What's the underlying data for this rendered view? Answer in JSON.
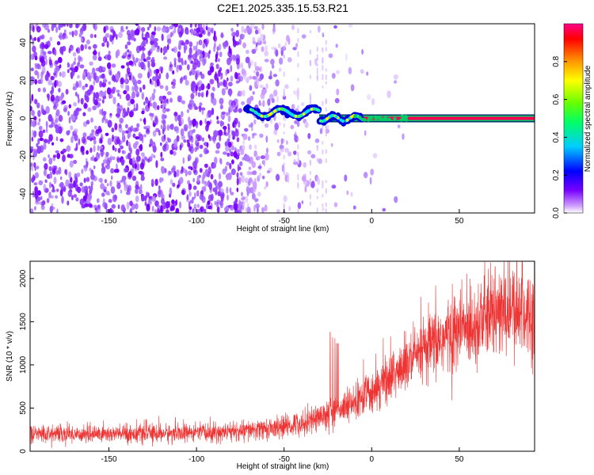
{
  "page_title": "C2E1.2025.335.15.53.R21",
  "chart_data": [
    {
      "type": "heatmap",
      "title": "C2E1.2025.335.15.53.R21",
      "xlabel": "Height of straight line (km)",
      "ylabel": "Frequency (Hz)",
      "xlim": [
        -195,
        93
      ],
      "ylim": [
        -50,
        50
      ],
      "xticks": [
        -150,
        -100,
        -50,
        0,
        50
      ],
      "yticks": [
        -40,
        -20,
        0,
        20,
        40
      ],
      "colorbar": {
        "label": "Normalized spectral amplitude",
        "range": [
          0,
          1
        ],
        "ticks": [
          "0.0",
          "0.2",
          "0.4",
          "0.6",
          "0.8"
        ],
        "colors": [
          "#ffffff",
          "#cc99ff",
          "#7700ff",
          "#0000ff",
          "#00ccff",
          "#00ff66",
          "#66ff00",
          "#ffff00",
          "#ff9900",
          "#ff0000",
          "#ff0088"
        ]
      },
      "features": {
        "noise_region_x": [
          -195,
          -25
        ],
        "sparse_noise_x": [
          -50,
          20
        ],
        "signal_line_x": [
          -72,
          93
        ],
        "signal_frequency_hz": 0,
        "signal_amplitude_on_line": 0.95
      },
      "grid": false
    },
    {
      "type": "line",
      "xlabel": "Height of straight line (km)",
      "ylabel": "SNR (10 * v/v)",
      "xlim": [
        -195,
        93
      ],
      "ylim": [
        0,
        2200
      ],
      "xticks": [
        -150,
        -100,
        -50,
        0,
        50
      ],
      "yticks": [
        0,
        500,
        1000,
        1500,
        2000
      ],
      "series_color": "#ee3333",
      "x": [
        -195,
        -150,
        -100,
        -75,
        -50,
        -40,
        -30,
        -20,
        -10,
        0,
        10,
        20,
        30,
        40,
        50,
        60,
        70,
        80,
        93
      ],
      "y": [
        200,
        200,
        210,
        230,
        280,
        330,
        400,
        450,
        550,
        700,
        850,
        1000,
        1150,
        1300,
        1400,
        1500,
        1580,
        1620,
        1600
      ],
      "grid": false
    }
  ]
}
